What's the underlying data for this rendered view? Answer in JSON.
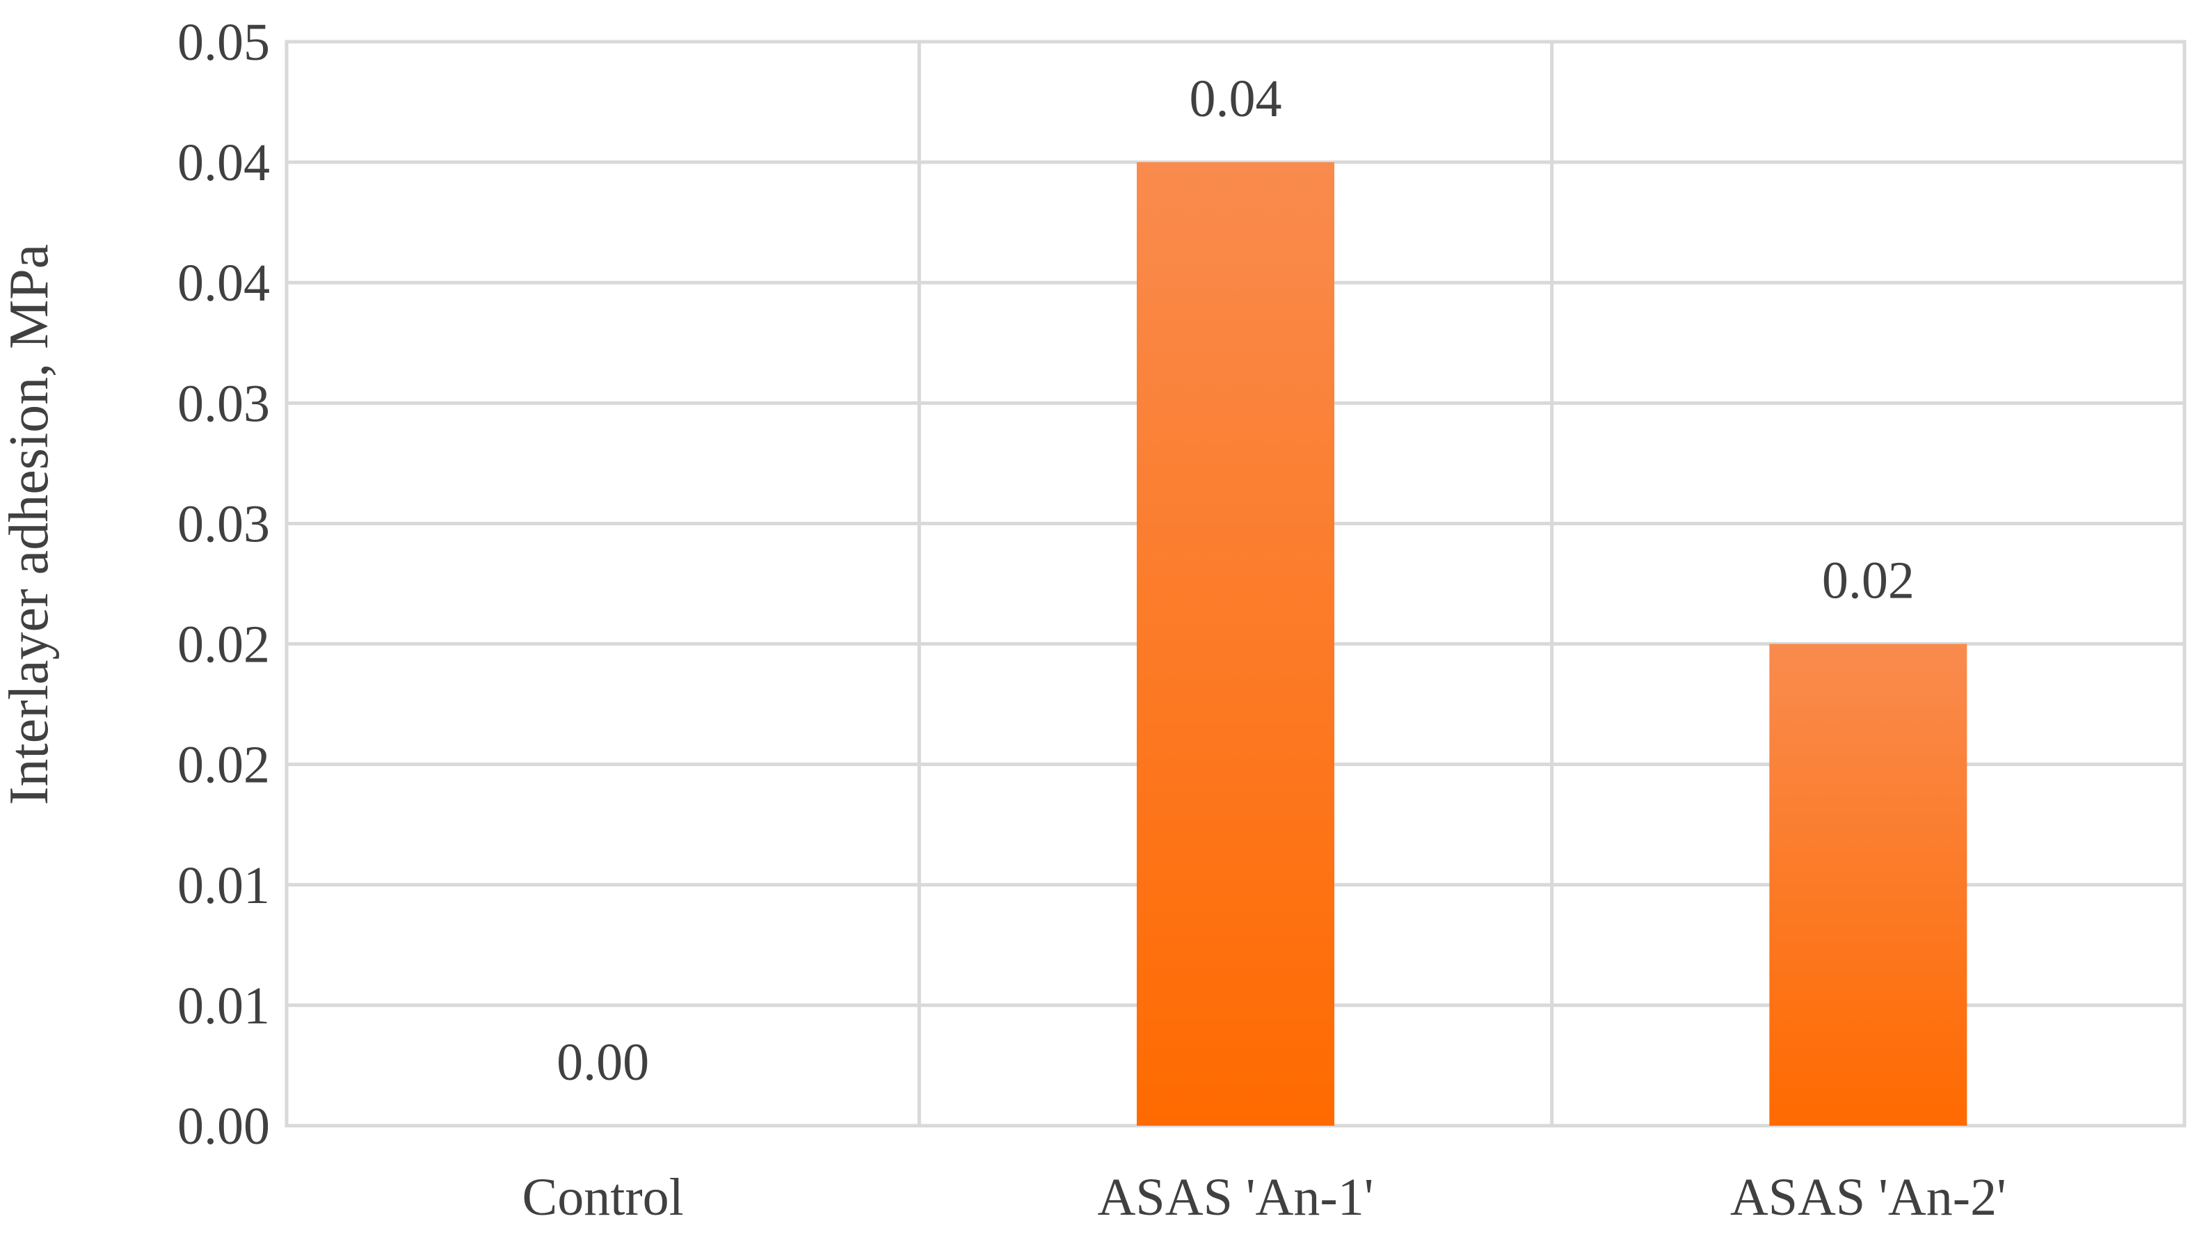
{
  "chart_data": {
    "type": "bar",
    "title": "",
    "xlabel": "",
    "ylabel": "Interlayer adhesion, MPa",
    "categories": [
      "Control",
      "ASAS 'An-1'",
      "ASAS 'An-2'"
    ],
    "values": [
      0.0,
      0.04,
      0.02
    ],
    "data_labels": [
      "0.00",
      "0.04",
      "0.02"
    ],
    "ylim": [
      0,
      0.045
    ],
    "y_ticks": [
      0,
      0.005,
      0.01,
      0.015,
      0.02,
      0.025,
      0.03,
      0.035,
      0.04,
      0.045
    ],
    "y_tick_labels": [
      "0.00",
      "0.01",
      "0.01",
      "0.02",
      "0.02",
      "0.03",
      "0.03",
      "0.04",
      "0.04",
      "0.05"
    ],
    "grid": true,
    "legend": "none",
    "colors": {
      "bar_top": "#f98b4e",
      "bar_bottom": "#ff6a00",
      "grid": "#d9d9d9",
      "text": "#404040"
    }
  }
}
